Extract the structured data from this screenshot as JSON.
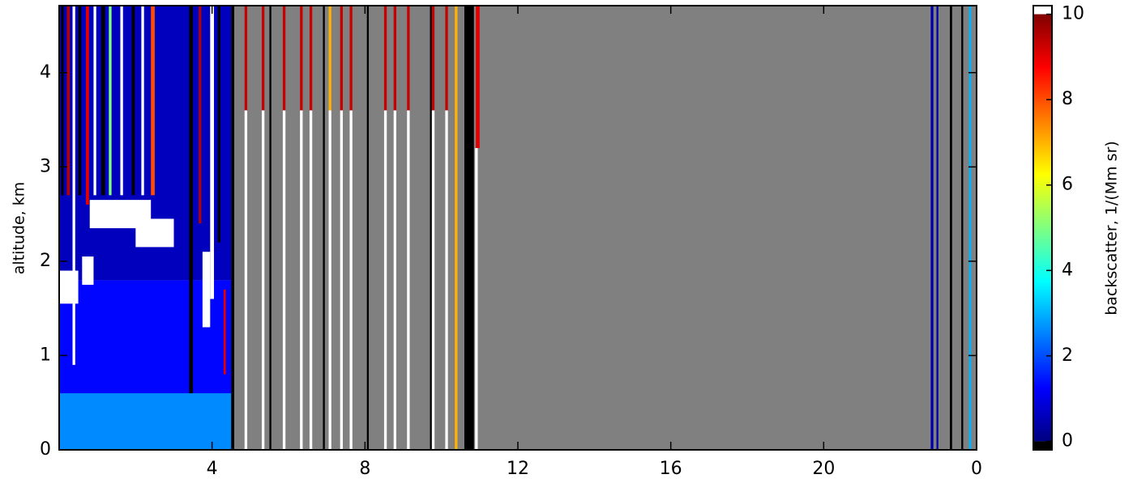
{
  "chart_data": {
    "type": "heatmap",
    "ylabel": "altitude, km",
    "colorbar_label": "backscatter, 1/(Mm sr)",
    "xlim": [
      0,
      24
    ],
    "xticks": [
      4,
      8,
      12,
      16,
      20,
      {
        "value": 24,
        "label": "0"
      }
    ],
    "ylim": [
      0,
      4.71
    ],
    "yticks": [
      0,
      1,
      2,
      3,
      4
    ],
    "clim": [
      0,
      10
    ],
    "colorbar_lim": [
      -0.2,
      10.2
    ],
    "colorbar_ticks": [
      0,
      2,
      4,
      6,
      8,
      10
    ],
    "colormap": "jet",
    "over_color": "#ffffff",
    "under_color": "#000000",
    "missing_color": "#808080",
    "cells": [
      {
        "x": [
          0,
          4.5
        ],
        "y": [
          0,
          0.6
        ],
        "value": 2.6
      },
      {
        "x": [
          0,
          4.5
        ],
        "y": [
          0.6,
          1.8
        ],
        "value": 1.3
      },
      {
        "x": [
          0,
          4.5
        ],
        "y": [
          1.8,
          4.71
        ],
        "value": 0.6
      },
      {
        "x": [
          0.8,
          2.4
        ],
        "y": [
          2.35,
          2.65
        ],
        "value": 11
      },
      {
        "x": [
          2.0,
          3.0
        ],
        "y": [
          2.15,
          2.45
        ],
        "value": 11
      },
      {
        "x": [
          0,
          0.5
        ],
        "y": [
          1.55,
          1.9
        ],
        "value": 11
      },
      {
        "x": [
          0.6,
          0.9
        ],
        "y": [
          1.75,
          2.05
        ],
        "value": 11
      },
      {
        "x": [
          3.75,
          3.95
        ],
        "y": [
          1.3,
          2.1
        ],
        "value": 11
      },
      {
        "x": [
          0.05,
          0.12
        ],
        "y": [
          2.7,
          4.71
        ],
        "value": -0.5
      },
      {
        "x": [
          0.2,
          0.28
        ],
        "y": [
          2.7,
          4.71
        ],
        "value": 9.5
      },
      {
        "x": [
          0.35,
          0.42
        ],
        "y": [
          0.9,
          4.71
        ],
        "value": 11
      },
      {
        "x": [
          0.5,
          0.58
        ],
        "y": [
          2.7,
          4.71
        ],
        "value": -0.5
      },
      {
        "x": [
          0.7,
          0.78
        ],
        "y": [
          2.6,
          4.71
        ],
        "value": 9
      },
      {
        "x": [
          0.9,
          0.97
        ],
        "y": [
          2.7,
          4.71
        ],
        "value": 11
      },
      {
        "x": [
          1.1,
          1.2
        ],
        "y": [
          2.7,
          4.71
        ],
        "value": -0.5
      },
      {
        "x": [
          1.3,
          1.37
        ],
        "y": [
          2.7,
          4.71
        ],
        "value": 5
      },
      {
        "x": [
          1.6,
          1.67
        ],
        "y": [
          2.7,
          4.71
        ],
        "value": 11
      },
      {
        "x": [
          1.9,
          1.98
        ],
        "y": [
          2.7,
          4.71
        ],
        "value": -0.5
      },
      {
        "x": [
          2.15,
          2.22
        ],
        "y": [
          2.7,
          4.71
        ],
        "value": 11
      },
      {
        "x": [
          2.4,
          2.5
        ],
        "y": [
          2.7,
          4.71
        ],
        "value": 8
      },
      {
        "x": [
          3.4,
          3.5
        ],
        "y": [
          0.6,
          4.71
        ],
        "value": -0.5
      },
      {
        "x": [
          3.65,
          3.72
        ],
        "y": [
          2.4,
          4.71
        ],
        "value": 9.5
      },
      {
        "x": [
          3.95,
          4.05
        ],
        "y": [
          1.6,
          4.71
        ],
        "value": 11
      },
      {
        "x": [
          4.15,
          4.22
        ],
        "y": [
          2.2,
          4.71
        ],
        "value": -0.5
      },
      {
        "x": [
          4.3,
          4.36
        ],
        "y": [
          0.8,
          1.7
        ],
        "value": 9
      },
      {
        "x": [
          4.5,
          4.58
        ],
        "y": [
          0,
          4.71
        ],
        "value": -0.5
      },
      {
        "x": [
          4.85,
          4.92
        ],
        "y": [
          0,
          3.6
        ],
        "value": 11
      },
      {
        "x": [
          4.85,
          4.92
        ],
        "y": [
          3.6,
          4.71
        ],
        "value": 9.3
      },
      {
        "x": [
          5.3,
          5.37
        ],
        "y": [
          0,
          3.6
        ],
        "value": 11
      },
      {
        "x": [
          5.3,
          5.37
        ],
        "y": [
          3.6,
          4.71
        ],
        "value": 9.3
      },
      {
        "x": [
          5.5,
          5.55
        ],
        "y": [
          0,
          4.71
        ],
        "value": -0.5
      },
      {
        "x": [
          5.85,
          5.92
        ],
        "y": [
          0,
          3.6
        ],
        "value": 11
      },
      {
        "x": [
          5.85,
          5.92
        ],
        "y": [
          3.6,
          4.71
        ],
        "value": 9.3
      },
      {
        "x": [
          6.3,
          6.37
        ],
        "y": [
          0,
          3.6
        ],
        "value": 11
      },
      {
        "x": [
          6.3,
          6.37
        ],
        "y": [
          3.6,
          4.71
        ],
        "value": 9.3
      },
      {
        "x": [
          6.55,
          6.62
        ],
        "y": [
          0,
          3.6
        ],
        "value": 11
      },
      {
        "x": [
          6.55,
          6.62
        ],
        "y": [
          3.6,
          4.71
        ],
        "value": 9.3
      },
      {
        "x": [
          6.9,
          6.95
        ],
        "y": [
          0,
          4.71
        ],
        "value": -0.5
      },
      {
        "x": [
          7.05,
          7.12
        ],
        "y": [
          0,
          3.6
        ],
        "value": 11
      },
      {
        "x": [
          7.05,
          7.12
        ],
        "y": [
          3.6,
          4.71
        ],
        "value": 7
      },
      {
        "x": [
          7.35,
          7.42
        ],
        "y": [
          0,
          3.6
        ],
        "value": 11
      },
      {
        "x": [
          7.35,
          7.42
        ],
        "y": [
          3.6,
          4.71
        ],
        "value": 9.3
      },
      {
        "x": [
          7.6,
          7.67
        ],
        "y": [
          0,
          3.6
        ],
        "value": 11
      },
      {
        "x": [
          7.6,
          7.67
        ],
        "y": [
          3.6,
          4.71
        ],
        "value": 9.3
      },
      {
        "x": [
          8.05,
          8.1
        ],
        "y": [
          0,
          4.71
        ],
        "value": -0.5
      },
      {
        "x": [
          8.5,
          8.57
        ],
        "y": [
          0,
          3.6
        ],
        "value": 11
      },
      {
        "x": [
          8.5,
          8.57
        ],
        "y": [
          3.6,
          4.71
        ],
        "value": 9.3
      },
      {
        "x": [
          8.75,
          8.82
        ],
        "y": [
          0,
          3.6
        ],
        "value": 11
      },
      {
        "x": [
          8.75,
          8.82
        ],
        "y": [
          3.6,
          4.71
        ],
        "value": 9.3
      },
      {
        "x": [
          9.1,
          9.17
        ],
        "y": [
          0,
          3.6
        ],
        "value": 11
      },
      {
        "x": [
          9.1,
          9.17
        ],
        "y": [
          3.6,
          4.71
        ],
        "value": 9.3
      },
      {
        "x": [
          9.7,
          9.75
        ],
        "y": [
          0,
          4.71
        ],
        "value": -0.5
      },
      {
        "x": [
          9.75,
          9.82
        ],
        "y": [
          0,
          3.6
        ],
        "value": 11
      },
      {
        "x": [
          9.75,
          9.82
        ],
        "y": [
          3.6,
          4.71
        ],
        "value": 9.3
      },
      {
        "x": [
          10.1,
          10.17
        ],
        "y": [
          0,
          3.6
        ],
        "value": 11
      },
      {
        "x": [
          10.1,
          10.17
        ],
        "y": [
          3.6,
          4.71
        ],
        "value": 9.3
      },
      {
        "x": [
          10.35,
          10.42
        ],
        "y": [
          0,
          4.71
        ],
        "value": 7
      },
      {
        "x": [
          10.6,
          10.85
        ],
        "y": [
          0,
          4.71
        ],
        "value": -0.5
      },
      {
        "x": [
          10.88,
          10.95
        ],
        "y": [
          0,
          3.2
        ],
        "value": 11
      },
      {
        "x": [
          10.9,
          11.0
        ],
        "y": [
          3.2,
          4.71
        ],
        "value": 9
      },
      {
        "x": [
          22.8,
          22.87
        ],
        "y": [
          0,
          4.71
        ],
        "value": 0.4
      },
      {
        "x": [
          22.95,
          23.0
        ],
        "y": [
          0,
          4.71
        ],
        "value": 0.4
      },
      {
        "x": [
          23.3,
          23.36
        ],
        "y": [
          0,
          4.71
        ],
        "value": -0.5
      },
      {
        "x": [
          23.6,
          23.65
        ],
        "y": [
          0,
          4.71
        ],
        "value": -0.5
      },
      {
        "x": [
          23.8,
          23.86
        ],
        "y": [
          0,
          4.71
        ],
        "value": 3
      }
    ]
  }
}
